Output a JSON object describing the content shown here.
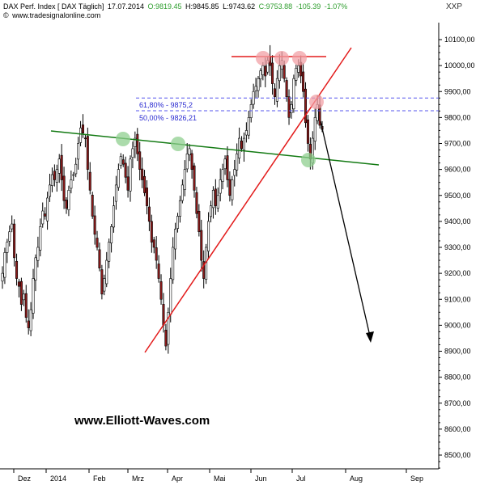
{
  "header": {
    "title": "DAX Perf. Index [ DAX  Täglich]",
    "date": "17.07.2014",
    "open": "O:9819.45",
    "high": "H:9845.85",
    "low": "L:9743.62",
    "close": "C:9753.88",
    "change": "-105.39",
    "change_pct": "-1.07%",
    "source": "www.tradesignalonline.com",
    "ticker": "XXP",
    "colors": {
      "open": "#2e9e2e",
      "close": "#2e9e2e",
      "change": "#2e9e2e"
    }
  },
  "watermark": "www.Elliott-Waves.com",
  "chart_data": {
    "type": "candlestick",
    "y_axis": {
      "range": [
        8450,
        10170
      ],
      "ticks": [
        "10100,00",
        "10000,00",
        "9900,00",
        "9800,00",
        "9700,00",
        "9600,00",
        "9500,00",
        "9400,00",
        "9300,00",
        "9200,00",
        "9100,00",
        "9000,00",
        "8900,00",
        "8800,00",
        "8700,00",
        "8600,00",
        "8500,00"
      ],
      "position": "right"
    },
    "x_axis": {
      "ticks": [
        "Dez",
        "2014",
        "Feb",
        "Mrz",
        "Apr",
        "Mai",
        "Jun",
        "Jul",
        "Aug",
        "Sep"
      ]
    },
    "grid": false,
    "fib_levels": [
      {
        "label": "61,80% - 9875,2",
        "value": 9875.2
      },
      {
        "label": "50,00% - 9826,21",
        "value": 9826.21
      }
    ],
    "colors": {
      "up": "#ffffff",
      "down": "#8b1a1a",
      "wick": "#000000",
      "trend_green": "#137a13",
      "trend_red": "#e31b1b",
      "fib": "#5555ee",
      "marker_red": "#f2a0a5",
      "marker_green": "#8fcf8f",
      "arrow": "#000000"
    },
    "closes": [
      9200,
      9280,
      9320,
      9360,
      9390,
      9260,
      9180,
      9150,
      9080,
      9120,
      9030,
      8990,
      9060,
      9180,
      9260,
      9300,
      9380,
      9440,
      9420,
      9490,
      9540,
      9580,
      9560,
      9600,
      9640,
      9560,
      9480,
      9450,
      9520,
      9560,
      9580,
      9620,
      9700,
      9760,
      9740,
      9720,
      9600,
      9520,
      9420,
      9350,
      9300,
      9220,
      9120,
      9180,
      9250,
      9320,
      9380,
      9460,
      9540,
      9600,
      9650,
      9620,
      9570,
      9520,
      9640,
      9680,
      9720,
      9660,
      9600,
      9560,
      9510,
      9460,
      9400,
      9320,
      9300,
      9250,
      9180,
      9100,
      9000,
      8920,
      9050,
      9180,
      9300,
      9370,
      9420,
      9480,
      9540,
      9600,
      9660,
      9680,
      9600,
      9520,
      9430,
      9360,
      9250,
      9180,
      9300,
      9400,
      9460,
      9520,
      9460,
      9500,
      9560,
      9600,
      9640,
      9560,
      9500,
      9560,
      9600,
      9660,
      9720,
      9680,
      9720,
      9750,
      9800,
      9850,
      9900,
      9920,
      9950,
      9980,
      10000,
      9960,
      10020,
      10000,
      9930,
      9880,
      9950,
      10000,
      10020,
      9950,
      9880,
      9800,
      9850,
      9950,
      9990,
      10000,
      9960,
      9900,
      9780,
      9700,
      9640,
      9720,
      9800,
      9850,
      9770,
      9754
    ]
  }
}
